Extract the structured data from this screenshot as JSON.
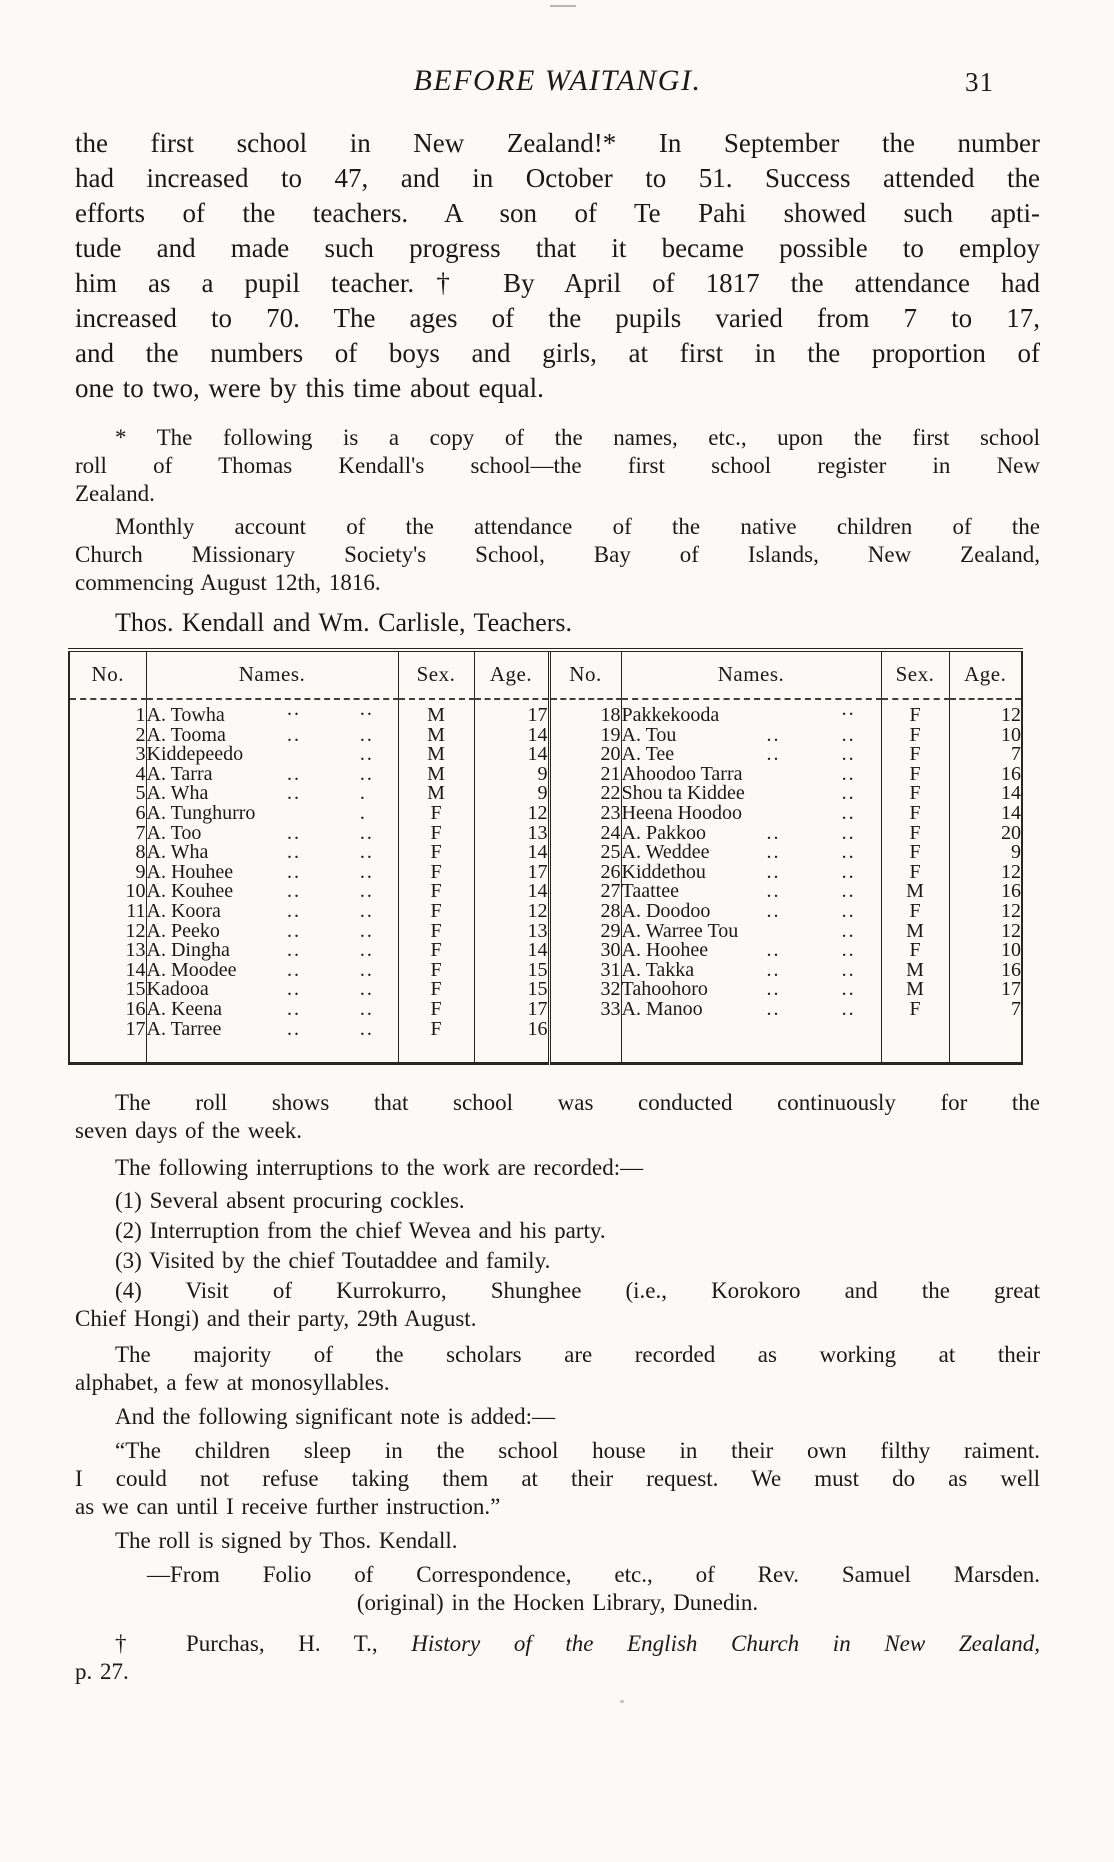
{
  "header": {
    "title": "BEFORE WAITANGI.",
    "page_number": "31"
  },
  "paragraphs": {
    "intro": {
      "lines": [
        "the first school in New Zealand!*  In September the number",
        "had increased to 47, and in October to 51.  Success attended the",
        "efforts of the teachers.  A son of Te Pahi showed such apti-",
        "tude and made such progress that it became possible to employ",
        "him as a pupil teacher.†  By April of 1817 the attendance had",
        "increased to 70.  The ages of the pupils varied from 7 to 17,",
        "and the numbers of boys and girls, at first in the proportion of",
        "one to two, were by this time about equal."
      ]
    },
    "footnote_star": {
      "lines": [
        "* The following is a copy of the names, etc., upon the first school",
        "roll of Thomas Kendall's school—the first school register in New",
        "Zealand."
      ]
    },
    "footnote_monthly": {
      "lines": [
        "Monthly account of the attendance of the native children of the",
        "Church Missionary Society's School, Bay of Islands, New Zealand,",
        "commencing August 12th, 1816."
      ]
    },
    "teachers": {
      "lines": [
        "Thos. Kendall and Wm. Carlisle, Teachers."
      ]
    },
    "roll_shows": {
      "lines": [
        "The roll shows that school was conducted continuously for the",
        "seven days of the week."
      ]
    },
    "interruptions_intro": {
      "lines": [
        "The following interruptions to the work are recorded:—"
      ]
    },
    "items": [
      {
        "lines": [
          "(1) Several absent procuring cockles."
        ]
      },
      {
        "lines": [
          "(2) Interruption from the chief Wevea and his party."
        ]
      },
      {
        "lines": [
          "(3) Visited by the chief Toutaddee and family."
        ]
      },
      {
        "lines": [
          "(4) Visit of Kurrokurro, Shunghee (i.e., Korokoro and the great",
          "Chief Hongi) and their party, 29th August."
        ]
      }
    ],
    "majority": {
      "lines": [
        "The majority of the scholars are recorded as working at their",
        "alphabet, a few at monosyllables."
      ]
    },
    "note_added": {
      "lines": [
        "And the following significant note is added:—"
      ]
    },
    "quote": {
      "lines": [
        "“The children sleep in the school house in their own filthy raiment.",
        "I could not refuse taking them at their request.  We must do as well",
        "as we can until I receive further instruction.”"
      ]
    },
    "signed": {
      "lines": [
        "The roll is signed by Thos. Kendall."
      ]
    },
    "attribution": {
      "line1": "—From Folio of Correspondence, etc., of Rev. Samuel Marsden.",
      "line2": "(original) in the Hocken Library, Dunedin."
    },
    "footnote_dagger": {
      "prefix": "† Purchas, H. T., ",
      "italic_title": "History of the English Church in New Zealand,",
      "second_line": "p. 27."
    }
  },
  "table": {
    "headers": [
      "No.",
      "Names.",
      "Sex.",
      "Age."
    ],
    "left_rows": [
      {
        "no": "1",
        "name": "A. Towha",
        "dots": [
          "..",
          ".."
        ],
        "sex": "M",
        "age": "17"
      },
      {
        "no": "2",
        "name": "A. Tooma",
        "dots": [
          "..",
          ".."
        ],
        "sex": "M",
        "age": "14"
      },
      {
        "no": "3",
        "name": "Kiddepeedo",
        "dots": [
          ".."
        ],
        "sex": "M",
        "age": "14"
      },
      {
        "no": "4",
        "name": "A. Tarra",
        "dots": [
          "..",
          ".."
        ],
        "sex": "M",
        "age": "9"
      },
      {
        "no": "5",
        "name": "A. Wha",
        "dots": [
          "..",
          "."
        ],
        "sex": "M",
        "age": "9"
      },
      {
        "no": "6",
        "name": "A. Tunghurro",
        "dots": [
          "."
        ],
        "sex": "F",
        "age": "12"
      },
      {
        "no": "7",
        "name": "A. Too",
        "dots": [
          "..",
          ".."
        ],
        "sex": "F",
        "age": "13"
      },
      {
        "no": "8",
        "name": "A. Wha",
        "dots": [
          "..",
          ".."
        ],
        "sex": "F",
        "age": "14"
      },
      {
        "no": "9",
        "name": "A. Houhee",
        "dots": [
          "..",
          ".."
        ],
        "sex": "F",
        "age": "17"
      },
      {
        "no": "10",
        "name": "A. Kouhee",
        "dots": [
          "..",
          ".."
        ],
        "sex": "F",
        "age": "14"
      },
      {
        "no": "11",
        "name": "A. Koora",
        "dots": [
          "..",
          ".."
        ],
        "sex": "F",
        "age": "12"
      },
      {
        "no": "12",
        "name": "A. Peeko",
        "dots": [
          "..",
          ".."
        ],
        "sex": "F",
        "age": "13"
      },
      {
        "no": "13",
        "name": "A. Dingha",
        "dots": [
          "..",
          ".."
        ],
        "sex": "F",
        "age": "14"
      },
      {
        "no": "14",
        "name": "A. Moodee",
        "dots": [
          "..",
          ".."
        ],
        "sex": "F",
        "age": "15"
      },
      {
        "no": "15",
        "name": "Kadooa",
        "dots": [
          "..",
          ".."
        ],
        "sex": "F",
        "age": "15"
      },
      {
        "no": "16",
        "name": "A. Keena",
        "dots": [
          "..",
          ".."
        ],
        "sex": "F",
        "age": "17"
      },
      {
        "no": "17",
        "name": "A. Tarree",
        "dots": [
          "..",
          ".."
        ],
        "sex": "F",
        "age": "16"
      }
    ],
    "right_rows": [
      {
        "no": "18",
        "name": "Pakkekooda",
        "dots": [
          ".."
        ],
        "sex": "F",
        "age": "12"
      },
      {
        "no": "19",
        "name": "A. Tou",
        "dots": [
          "..",
          ".."
        ],
        "sex": "F",
        "age": "10"
      },
      {
        "no": "20",
        "name": "A. Tee",
        "dots": [
          "..",
          ".."
        ],
        "sex": "F",
        "age": "7"
      },
      {
        "no": "21",
        "name": "Ahoodoo Tarra",
        "dots": [
          ".."
        ],
        "sex": "F",
        "age": "16"
      },
      {
        "no": "22",
        "name": "Shou ta Kiddee",
        "dots": [
          ".."
        ],
        "sex": "F",
        "age": "14"
      },
      {
        "no": "23",
        "name": "Heena Hoodoo",
        "dots": [
          ".."
        ],
        "sex": "F",
        "age": "14"
      },
      {
        "no": "24",
        "name": "A. Pakkoo",
        "dots": [
          "..",
          ".."
        ],
        "sex": "F",
        "age": "20"
      },
      {
        "no": "25",
        "name": "A. Weddee",
        "dots": [
          "..",
          ".."
        ],
        "sex": "F",
        "age": "9"
      },
      {
        "no": "26",
        "name": "Kiddethou",
        "dots": [
          "..",
          ".."
        ],
        "sex": "F",
        "age": "12"
      },
      {
        "no": "27",
        "name": "Taattee",
        "dots": [
          "..",
          ".."
        ],
        "sex": "M",
        "age": "16"
      },
      {
        "no": "28",
        "name": "A. Doodoo",
        "dots": [
          "..",
          ".."
        ],
        "sex": "F",
        "age": "12"
      },
      {
        "no": "29",
        "name": "A. Warree Tou",
        "dots": [
          ".."
        ],
        "sex": "M",
        "age": "12"
      },
      {
        "no": "30",
        "name": "A. Hoohee",
        "dots": [
          "..",
          ".."
        ],
        "sex": "F",
        "age": "10"
      },
      {
        "no": "31",
        "name": "A. Takka",
        "dots": [
          "..",
          ".."
        ],
        "sex": "M",
        "age": "16"
      },
      {
        "no": "32",
        "name": "Tahoohoro",
        "dots": [
          "..",
          ".."
        ],
        "sex": "M",
        "age": "17"
      },
      {
        "no": "33",
        "name": "A. Manoo",
        "dots": [
          "..",
          ".."
        ],
        "sex": "F",
        "age": "7"
      }
    ]
  }
}
